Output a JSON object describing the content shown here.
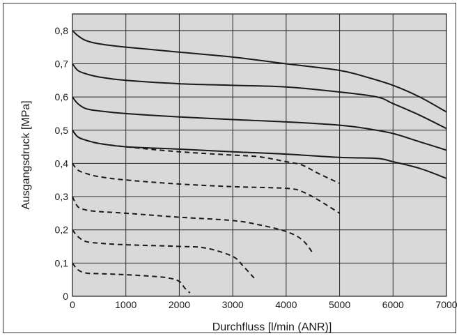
{
  "chart_data": {
    "type": "line",
    "title": "",
    "xlabel": "Durchfluss [l/min (ANR)]",
    "ylabel": "Ausgangsdruck [MPa]",
    "xlim": [
      0,
      7000
    ],
    "ylim": [
      0,
      0.85
    ],
    "x_ticks": [
      "0",
      "1000",
      "2000",
      "3000",
      "4000",
      "5000",
      "6000",
      "7000"
    ],
    "x_tick_values": [
      0,
      1000,
      2000,
      3000,
      4000,
      5000,
      6000,
      7000
    ],
    "y_ticks": [
      "0",
      "0,1",
      "0,2",
      "0,3",
      "0,4",
      "0,5",
      "0,6",
      "0,7",
      "0,8"
    ],
    "y_tick_values": [
      0,
      0.1,
      0.2,
      0.3,
      0.4,
      0.5,
      0.6,
      0.7,
      0.8
    ],
    "grid": true,
    "background": "#d9d9d9",
    "line_color": "#1a1a1a",
    "series": [
      {
        "style": "solid",
        "x": [
          0,
          100,
          250,
          500,
          1000,
          2000,
          3000,
          4000,
          5000,
          5500,
          6000,
          6500,
          7000
        ],
        "y": [
          0.8,
          0.785,
          0.77,
          0.76,
          0.75,
          0.735,
          0.72,
          0.7,
          0.68,
          0.66,
          0.635,
          0.6,
          0.555
        ]
      },
      {
        "style": "solid",
        "x": [
          0,
          100,
          250,
          500,
          1000,
          2000,
          3000,
          4000,
          5000,
          5700,
          6000,
          6500,
          7000
        ],
        "y": [
          0.7,
          0.68,
          0.67,
          0.66,
          0.65,
          0.64,
          0.635,
          0.63,
          0.615,
          0.6,
          0.58,
          0.545,
          0.505
        ]
      },
      {
        "style": "solid",
        "x": [
          0,
          100,
          250,
          500,
          1000,
          2000,
          3000,
          4000,
          5000,
          5500,
          6000,
          6500,
          7000
        ],
        "y": [
          0.6,
          0.58,
          0.565,
          0.558,
          0.55,
          0.54,
          0.532,
          0.525,
          0.515,
          0.505,
          0.49,
          0.465,
          0.44
        ]
      },
      {
        "style": "solid",
        "x": [
          0,
          100,
          250,
          500,
          1000,
          2000,
          3000,
          4000,
          5000,
          5700,
          6000,
          6500,
          7000
        ],
        "y": [
          0.5,
          0.48,
          0.47,
          0.46,
          0.45,
          0.443,
          0.435,
          0.428,
          0.418,
          0.415,
          0.405,
          0.385,
          0.355
        ]
      },
      {
        "style": "dashed",
        "x": [
          0,
          100,
          250,
          500,
          1000,
          2000,
          3000,
          3500,
          4000,
          4300,
          4600,
          5000
        ],
        "y": [
          0.5,
          0.48,
          0.47,
          0.46,
          0.45,
          0.435,
          0.425,
          0.42,
          0.405,
          0.395,
          0.37,
          0.34
        ]
      },
      {
        "style": "dashed",
        "x": [
          0,
          100,
          250,
          500,
          1000,
          2000,
          3000,
          4000,
          4300,
          4600,
          5000
        ],
        "y": [
          0.4,
          0.38,
          0.37,
          0.36,
          0.35,
          0.338,
          0.33,
          0.325,
          0.315,
          0.29,
          0.25
        ]
      },
      {
        "style": "dashed",
        "x": [
          0,
          100,
          250,
          500,
          1000,
          2000,
          3000,
          3500,
          4000,
          4300,
          4500
        ],
        "y": [
          0.3,
          0.27,
          0.26,
          0.255,
          0.25,
          0.238,
          0.228,
          0.215,
          0.195,
          0.17,
          0.13
        ]
      },
      {
        "style": "dashed",
        "x": [
          0,
          100,
          250,
          500,
          1000,
          2000,
          2500,
          3000,
          3200,
          3400
        ],
        "y": [
          0.2,
          0.18,
          0.165,
          0.16,
          0.155,
          0.15,
          0.145,
          0.12,
          0.09,
          0.055
        ]
      },
      {
        "style": "dashed",
        "x": [
          0,
          100,
          250,
          500,
          1000,
          1500,
          1800,
          2000,
          2100,
          2200
        ],
        "y": [
          0.1,
          0.08,
          0.07,
          0.068,
          0.065,
          0.06,
          0.055,
          0.045,
          0.025,
          0.01
        ]
      }
    ]
  }
}
